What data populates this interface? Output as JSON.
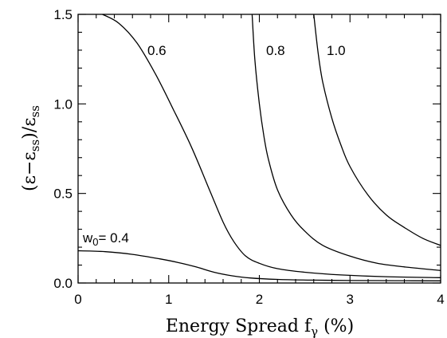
{
  "chart_data": {
    "type": "line",
    "title": "",
    "xlabel": "Energy Spread fγ (%)",
    "ylabel": "(ε−εss)/εss",
    "xlim": [
      0,
      4
    ],
    "ylim": [
      0,
      1.5
    ],
    "xticks": [
      0,
      1,
      2,
      3,
      4
    ],
    "xtick_labels": [
      "0",
      "1",
      "2",
      "3",
      "4"
    ],
    "yticks": [
      0.0,
      0.5,
      1.0,
      1.5
    ],
    "ytick_labels": [
      "0.0",
      "0.5",
      "1.0",
      "1.5"
    ],
    "grid": false,
    "legend": "none",
    "series": [
      {
        "name": "w0= 0.4",
        "x": [
          0,
          0.3,
          0.6,
          0.9,
          1.1,
          1.3,
          1.5,
          1.7,
          1.9,
          2.2,
          2.6,
          3.0,
          3.5,
          4.0
        ],
        "y": [
          0.18,
          0.175,
          0.16,
          0.135,
          0.115,
          0.09,
          0.06,
          0.04,
          0.028,
          0.02,
          0.016,
          0.014,
          0.013,
          0.012
        ]
      },
      {
        "name": "0.6",
        "x": [
          0.27,
          0.45,
          0.65,
          0.85,
          1.05,
          1.25,
          1.45,
          1.6,
          1.72,
          1.85,
          2.0,
          2.2,
          2.5,
          2.9,
          3.4,
          4.0
        ],
        "y": [
          1.5,
          1.45,
          1.34,
          1.17,
          0.97,
          0.76,
          0.52,
          0.34,
          0.23,
          0.15,
          0.11,
          0.08,
          0.06,
          0.045,
          0.035,
          0.03
        ]
      },
      {
        "name": "0.8",
        "x": [
          1.92,
          1.95,
          2.0,
          2.05,
          2.1,
          2.2,
          2.35,
          2.5,
          2.7,
          3.0,
          3.3,
          3.6,
          4.0
        ],
        "y": [
          1.5,
          1.25,
          1.0,
          0.82,
          0.69,
          0.52,
          0.38,
          0.29,
          0.21,
          0.15,
          0.11,
          0.09,
          0.07
        ]
      },
      {
        "name": "1.0",
        "x": [
          2.6,
          2.65,
          2.7,
          2.8,
          2.9,
          3.0,
          3.2,
          3.4,
          3.6,
          3.8,
          4.0
        ],
        "y": [
          1.5,
          1.28,
          1.12,
          0.92,
          0.77,
          0.65,
          0.49,
          0.38,
          0.31,
          0.25,
          0.21
        ]
      }
    ],
    "curve_labels": [
      "0.6",
      "0.8",
      "1.0",
      "w0= 0.4"
    ]
  }
}
